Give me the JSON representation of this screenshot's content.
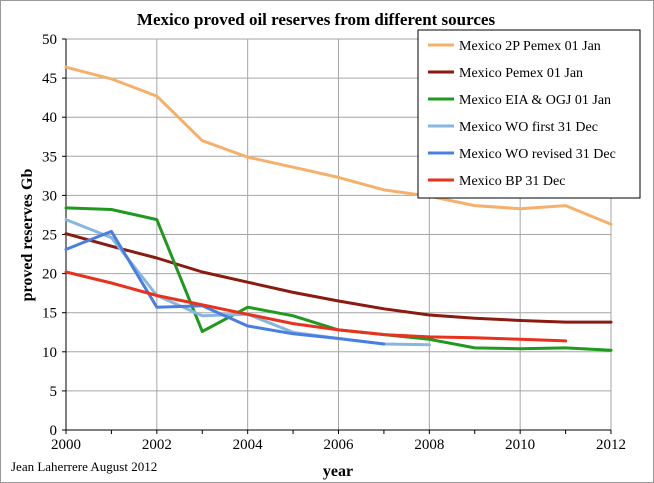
{
  "chart_data": {
    "type": "line",
    "title": "Mexico proved oil reserves from different sources",
    "xlabel": "year",
    "ylabel": "proved reserves Gb",
    "xlim": [
      2000,
      2012
    ],
    "ylim": [
      0,
      50
    ],
    "x_ticks": [
      "2000",
      "2002",
      "2004",
      "2006",
      "2008",
      "2010",
      "2012"
    ],
    "y_ticks": [
      "0",
      "5",
      "10",
      "15",
      "20",
      "25",
      "30",
      "35",
      "40",
      "45",
      "50"
    ],
    "grid": true,
    "legend_position": "top-right",
    "credit": "Jean Laherrere August 2012",
    "series": [
      {
        "name": "Mexico 2P Pemex 01 Jan",
        "color": "#f5b06b",
        "x": [
          2000,
          2001,
          2002,
          2003,
          2004,
          2005,
          2006,
          2007,
          2008,
          2009,
          2010,
          2011,
          2012
        ],
        "values": [
          46.4,
          44.9,
          42.7,
          37.0,
          34.9,
          33.6,
          32.3,
          30.7,
          29.9,
          28.7,
          28.3,
          28.7,
          26.3
        ]
      },
      {
        "name": "Mexico  Pemex 01 Jan",
        "color": "#8b1a10",
        "x": [
          2000,
          2001,
          2002,
          2003,
          2004,
          2005,
          2006,
          2007,
          2008,
          2009,
          2010,
          2011,
          2012
        ],
        "values": [
          25.1,
          23.5,
          22.0,
          20.2,
          18.9,
          17.6,
          16.5,
          15.5,
          14.7,
          14.3,
          14.0,
          13.8,
          13.8
        ]
      },
      {
        "name": "Mexico EIA & OGJ 01 Jan",
        "color": "#1f9a1f",
        "x": [
          2000,
          2001,
          2002,
          2003,
          2004,
          2005,
          2006,
          2007,
          2008,
          2009,
          2010,
          2011,
          2012
        ],
        "values": [
          28.4,
          28.2,
          26.9,
          12.6,
          15.7,
          14.6,
          12.8,
          12.2,
          11.6,
          10.5,
          10.4,
          10.5,
          10.2
        ]
      },
      {
        "name": "Mexico WO first 31 Dec",
        "color": "#87b7e0",
        "x": [
          2000,
          2001,
          2002,
          2003,
          2004,
          2005,
          2006,
          2007,
          2008
        ],
        "values": [
          26.9,
          24.6,
          17.2,
          14.6,
          14.8,
          12.5,
          11.7,
          11.0,
          10.9
        ]
      },
      {
        "name": "Mexico WO revised 31 Dec",
        "color": "#4a7fe0",
        "x": [
          2000,
          2001,
          2002,
          2003,
          2004,
          2005,
          2006,
          2007
        ],
        "values": [
          23.1,
          25.4,
          15.7,
          15.9,
          13.3,
          12.3,
          11.7,
          11.0
        ]
      },
      {
        "name": "Mexico BP 31 Dec",
        "color": "#e8321e",
        "x": [
          2000,
          2001,
          2002,
          2003,
          2004,
          2005,
          2006,
          2007,
          2008,
          2009,
          2010,
          2011
        ],
        "values": [
          20.2,
          18.8,
          17.2,
          16.0,
          14.8,
          13.6,
          12.8,
          12.2,
          11.9,
          11.8,
          11.6,
          11.4
        ]
      }
    ]
  }
}
